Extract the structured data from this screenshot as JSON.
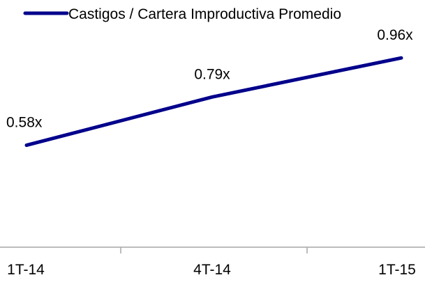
{
  "chart_data": {
    "type": "line",
    "categories": [
      "1T-14",
      "4T-14",
      "1T-15"
    ],
    "series": [
      {
        "name": "Castigos / Cartera Improductiva Promedio",
        "values": [
          0.58,
          0.79,
          0.96
        ],
        "labels": [
          "0.58x",
          "0.79x",
          "0.96x"
        ]
      }
    ],
    "title": "",
    "xlabel": "",
    "ylabel": "",
    "ylim": [
      0,
      2
    ],
    "grid": false,
    "legend_position": "top",
    "colors": {
      "line": "#00008B",
      "axis": "#A6A6A6",
      "text": "#000000"
    }
  }
}
